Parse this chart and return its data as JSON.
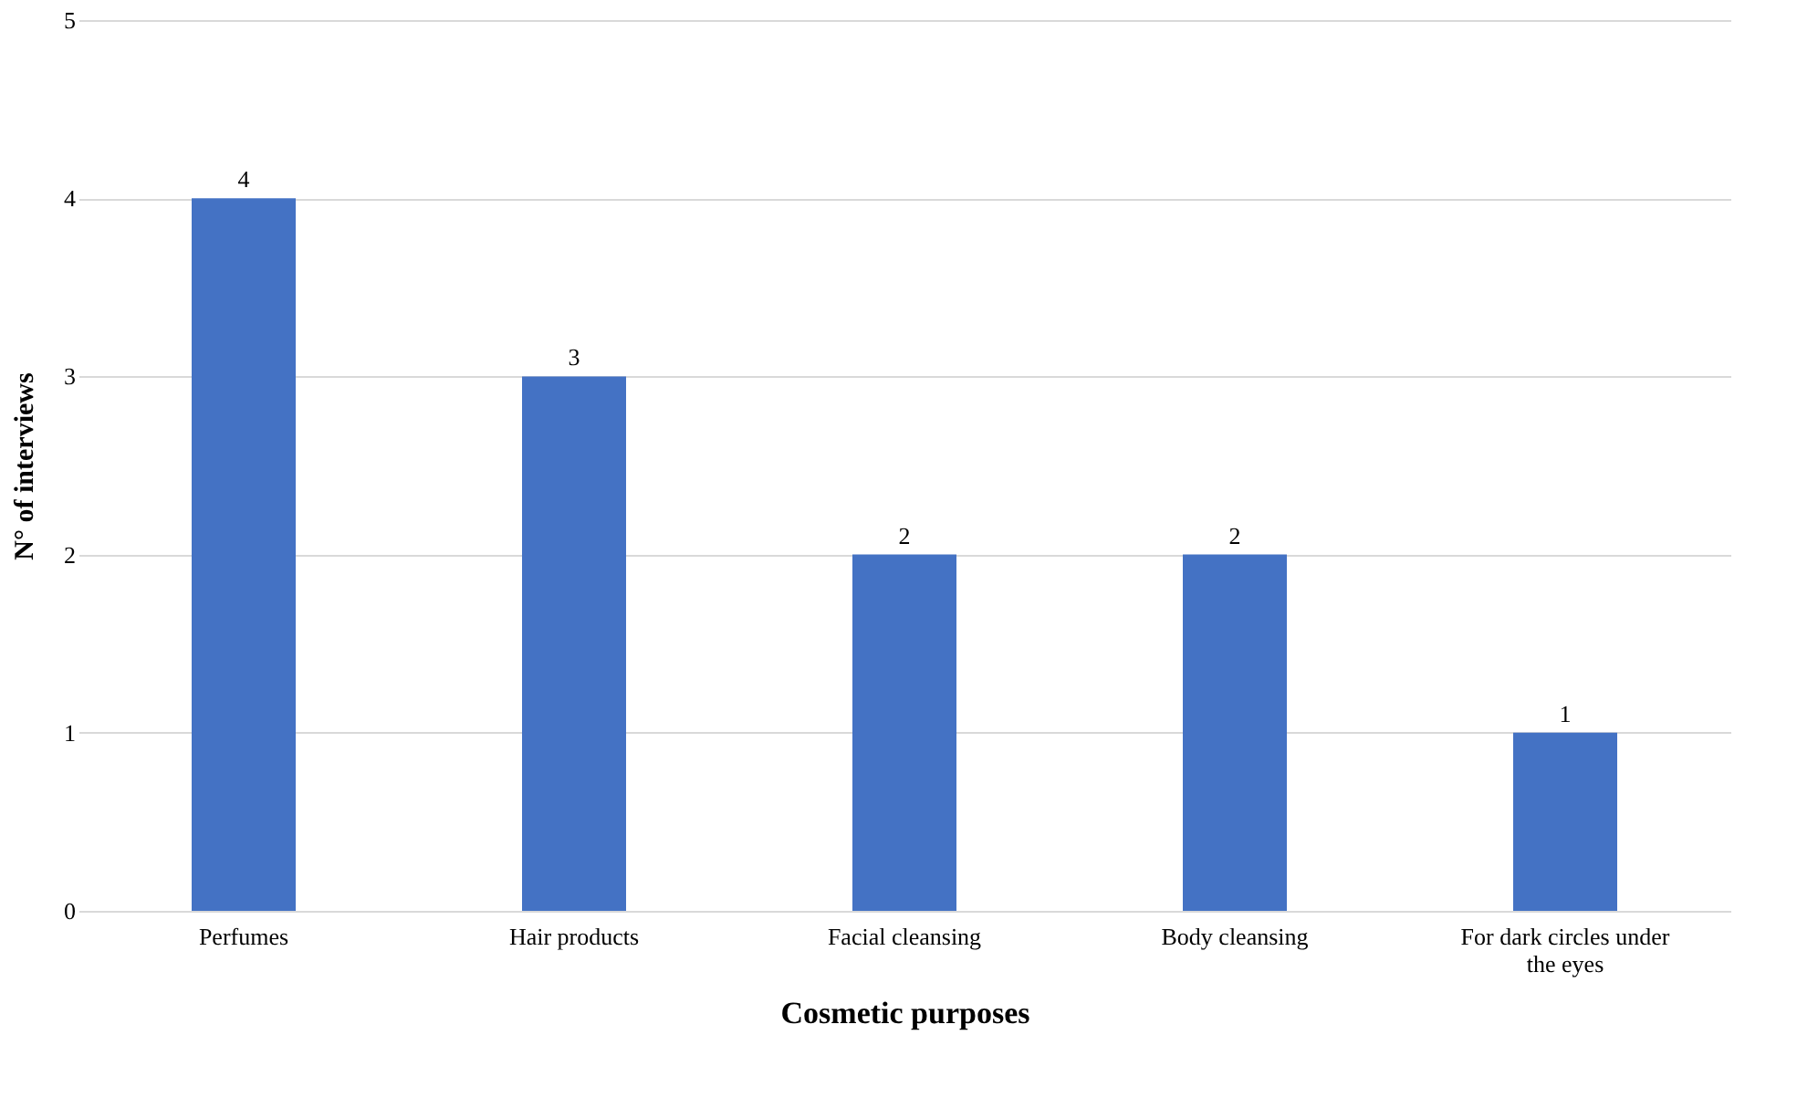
{
  "chart_data": {
    "type": "bar",
    "xlabel": "Cosmetic purposes",
    "ylabel": "N° of interviews",
    "categories": [
      "Perfumes",
      "Hair products",
      "Facial cleansing",
      "Body cleansing",
      "For dark circles under the eyes"
    ],
    "values": [
      4,
      3,
      2,
      2,
      1
    ],
    "color": "#4472c4",
    "ylim": [
      0,
      5
    ],
    "yticks": [
      0,
      1,
      2,
      3,
      4,
      5
    ],
    "grid": "y",
    "data_labels": true
  }
}
